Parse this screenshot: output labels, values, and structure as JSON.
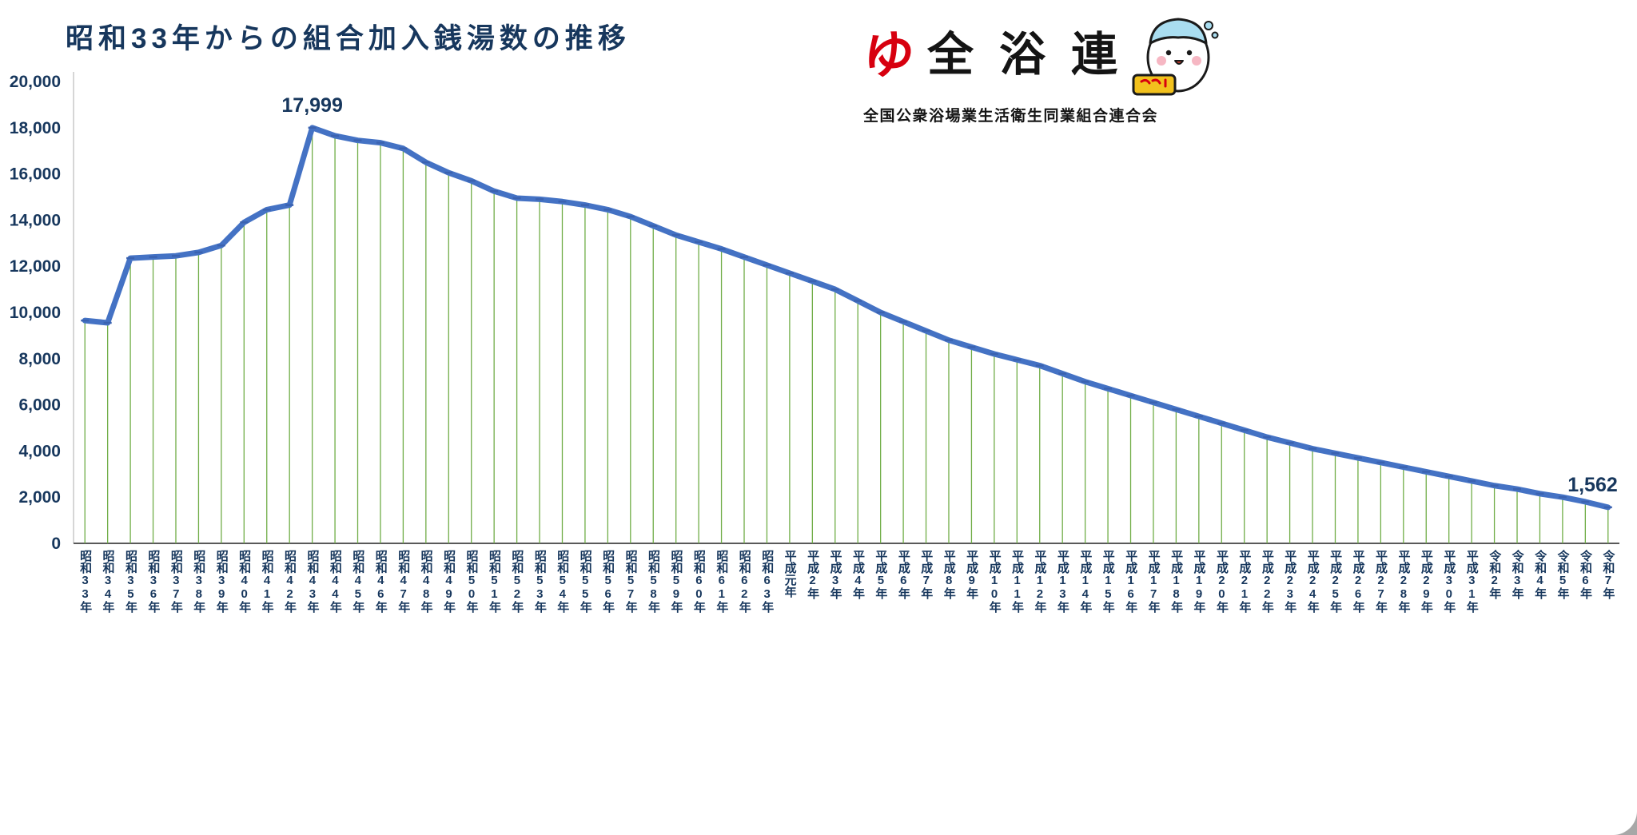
{
  "page": {
    "title": "昭和33年からの組合加入銭湯数の推移"
  },
  "logo": {
    "mark": "ゆ",
    "name": "全浴連",
    "subtitle": "全国公衆浴場業生活衛生同業組合連合会"
  },
  "chart_data": {
    "type": "line",
    "title": "昭和33年からの組合加入銭湯数の推移",
    "xlabel": "",
    "ylabel": "",
    "ylim": [
      0,
      20000
    ],
    "ytick_step": 2000,
    "ytick_labels": [
      "0",
      "2,000",
      "4,000",
      "6,000",
      "8,000",
      "10,000",
      "12,000",
      "14,000",
      "16,000",
      "18,000",
      "20,000"
    ],
    "grid": false,
    "legend": "none",
    "line_color": "#4472C4",
    "marker_color": "#3A62B0",
    "drop_line_color": "#70AD47",
    "text_color": "#17375D",
    "categories": [
      "昭和33年",
      "昭和34年",
      "昭和35年",
      "昭和36年",
      "昭和37年",
      "昭和38年",
      "昭和39年",
      "昭和40年",
      "昭和41年",
      "昭和42年",
      "昭和43年",
      "昭和44年",
      "昭和45年",
      "昭和46年",
      "昭和47年",
      "昭和48年",
      "昭和49年",
      "昭和50年",
      "昭和51年",
      "昭和52年",
      "昭和53年",
      "昭和54年",
      "昭和55年",
      "昭和56年",
      "昭和57年",
      "昭和58年",
      "昭和59年",
      "昭和60年",
      "昭和61年",
      "昭和62年",
      "昭和63年",
      "平成元年",
      "平成2年",
      "平成3年",
      "平成4年",
      "平成5年",
      "平成6年",
      "平成7年",
      "平成8年",
      "平成9年",
      "平成10年",
      "平成11年",
      "平成12年",
      "平成13年",
      "平成14年",
      "平成15年",
      "平成16年",
      "平成17年",
      "平成18年",
      "平成19年",
      "平成20年",
      "平成21年",
      "平成22年",
      "平成23年",
      "平成24年",
      "平成25年",
      "平成26年",
      "平成27年",
      "平成28年",
      "平成29年",
      "平成30年",
      "平成31年",
      "令和2年",
      "令和3年",
      "令和4年",
      "令和5年",
      "令和6年",
      "令和7年"
    ],
    "values": [
      9650,
      9550,
      12350,
      12400,
      12450,
      12600,
      12900,
      13900,
      14450,
      14650,
      17999,
      17650,
      17450,
      17350,
      17100,
      16500,
      16050,
      15700,
      15250,
      14950,
      14900,
      14800,
      14650,
      14450,
      14150,
      13750,
      13350,
      13050,
      12750,
      12400,
      12050,
      11700,
      11350,
      11000,
      10500,
      10000,
      9600,
      9200,
      8800,
      8500,
      8200,
      7950,
      7700,
      7350,
      7000,
      6700,
      6400,
      6100,
      5800,
      5500,
      5200,
      4900,
      4600,
      4350,
      4100,
      3900,
      3700,
      3500,
      3300,
      3100,
      2900,
      2700,
      2500,
      2350,
      2150,
      2000,
      1800,
      1562
    ],
    "annotations": [
      {
        "index": 10,
        "label": "17,999"
      },
      {
        "index": 67,
        "label": "1,562"
      }
    ]
  }
}
